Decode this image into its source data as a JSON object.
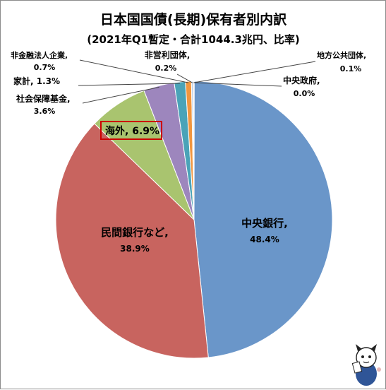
{
  "chart_data": {
    "type": "pie",
    "title": "日本国国債(長期)保有者別内訳",
    "subtitle": "(2021年Q1暫定・合計1044.3兆円、比率)",
    "start_angle_deg": 0,
    "direction": "clockwise",
    "slices": [
      {
        "label": "中央銀行,",
        "value_label": "48.4%",
        "value": 48.4,
        "color": "#6a96c9"
      },
      {
        "label": "民間銀行など,",
        "value_label": "38.9%",
        "value": 38.9,
        "color": "#c8645f"
      },
      {
        "label": "海外,",
        "value_label": "6.9%",
        "value": 6.9,
        "color": "#a9c46f",
        "highlight": true,
        "highlight_color": "#cc0000"
      },
      {
        "label": "社会保障基金,",
        "value_label": "3.6%",
        "value": 3.6,
        "color": "#9d86bd"
      },
      {
        "label": "家計,",
        "value_label": "1.3%",
        "value": 1.3,
        "color": "#4aa3b8"
      },
      {
        "label": "非金融法人企業,",
        "value_label": "0.7%",
        "value": 0.7,
        "color": "#f1963f"
      },
      {
        "label": "非営利団体,",
        "value_label": "0.2%",
        "value": 0.2,
        "color": "#b9cde5"
      },
      {
        "label": "地方公共団体,",
        "value_label": "0.1%",
        "value": 0.1,
        "color": "#e6b9b8"
      },
      {
        "label": "中央政府,",
        "value_label": "0.0%",
        "value": 0.0,
        "color": "#d7e4bd"
      }
    ]
  },
  "mascot": {
    "name": "mascot-cat-illustration"
  }
}
